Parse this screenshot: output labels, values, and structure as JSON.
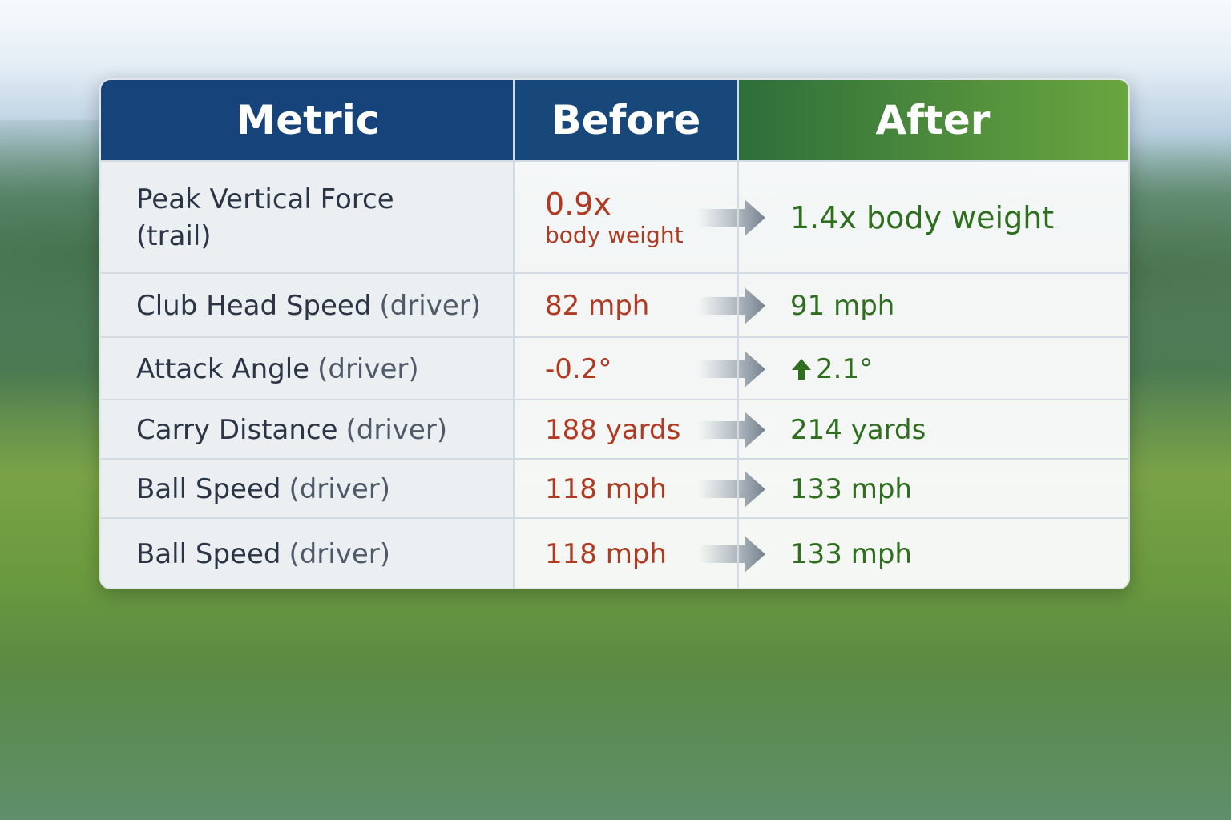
{
  "table": {
    "header": [
      "Metric",
      "Before",
      "After"
    ],
    "rows": [
      {
        "metric": "Peak Vertical Force (trail)",
        "before": "0.9x",
        "before_note": "body weight",
        "after": "1.4x body weight"
      },
      {
        "metric": "Club Head Speed",
        "qualifier": "(driver)",
        "before": "82 mph",
        "after": "91 mph"
      },
      {
        "metric": "Attack Angle",
        "qualifier": "(driver)",
        "before": "-0.2°",
        "after": "2.1°"
      },
      {
        "metric": "Carry Distance",
        "qualifier": "(driver)",
        "before": "188 yards",
        "after": "214 yards"
      },
      {
        "metric": "Ball Speed",
        "qualifier": "(driver)",
        "before": "118 mph",
        "after": "133 mph"
      },
      {
        "metric": "Ball Speed",
        "qualifier": "(driver)",
        "before": "118 mph",
        "after": "133 mph"
      }
    ]
  }
}
